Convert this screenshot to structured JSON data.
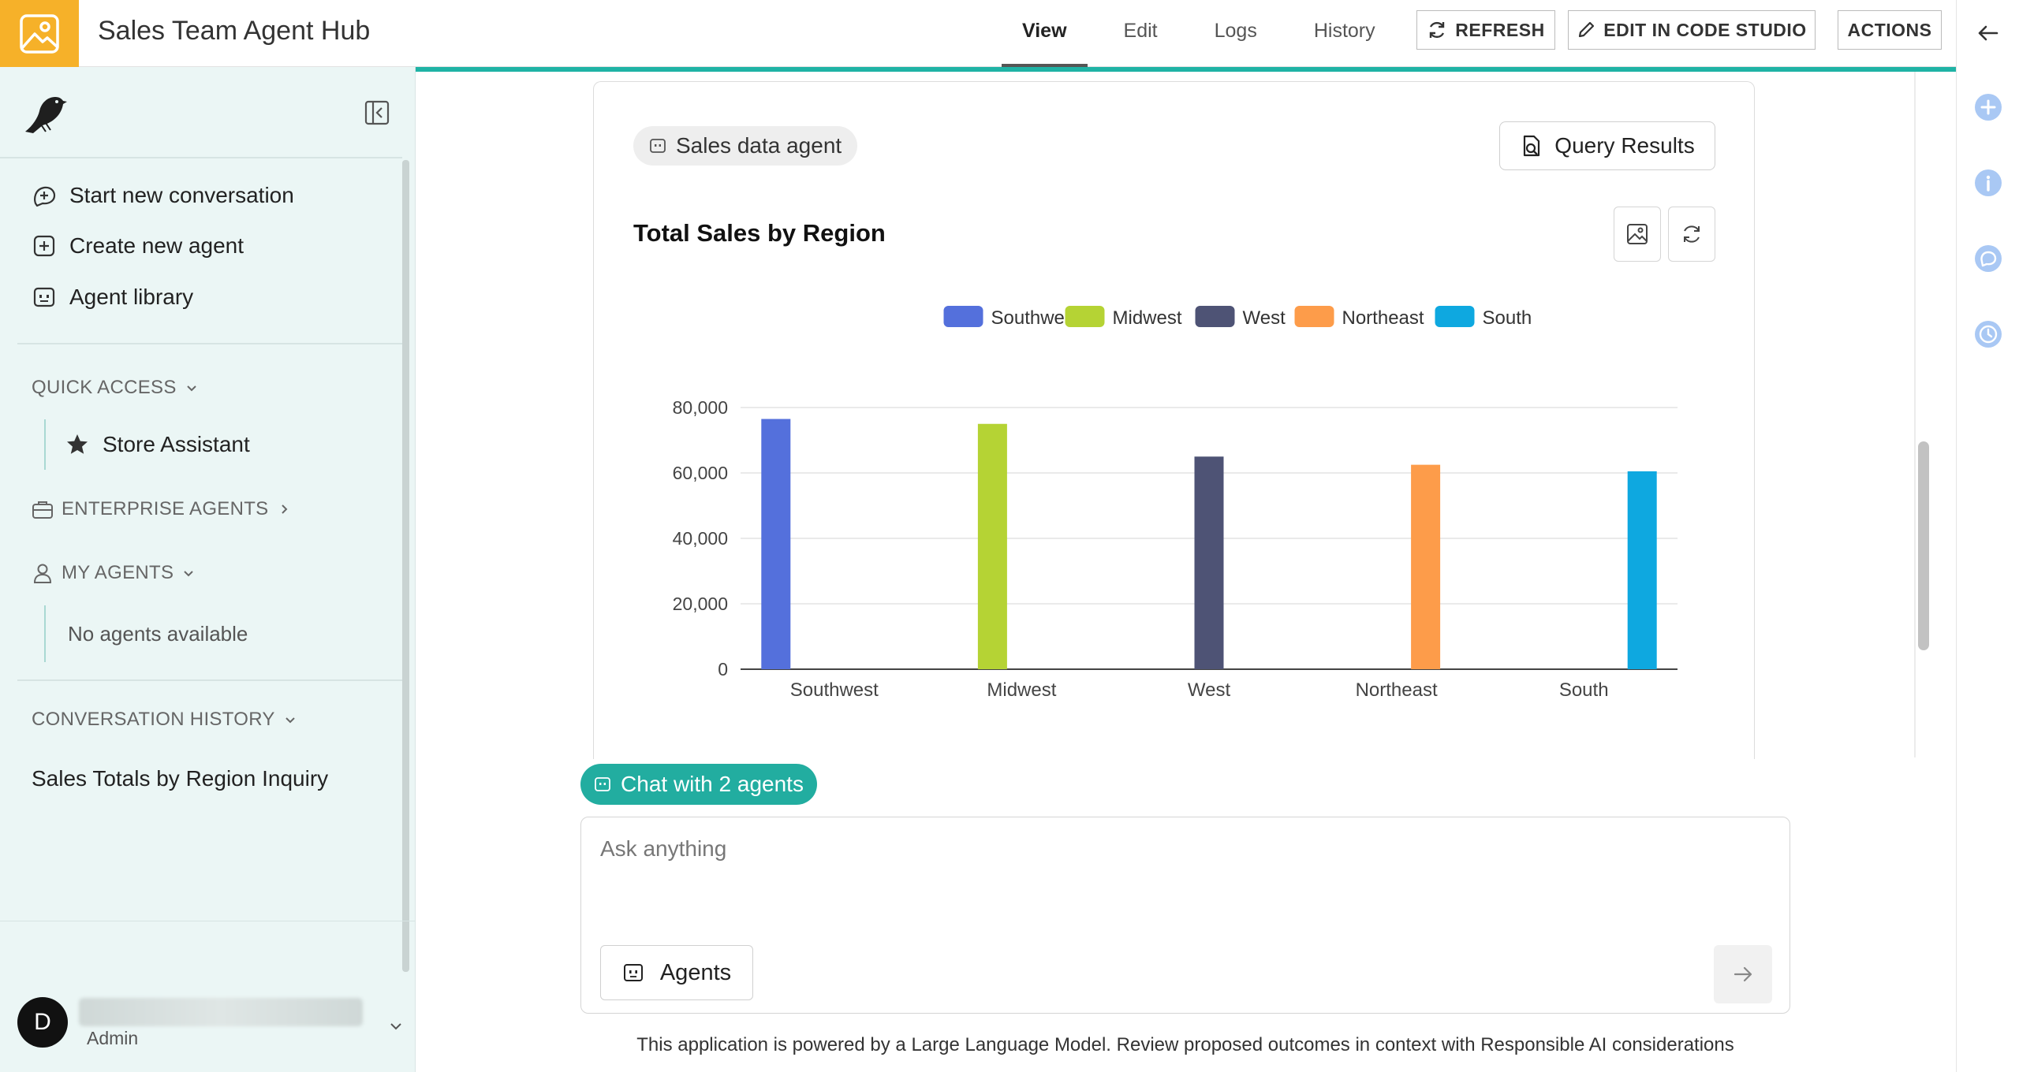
{
  "app": {
    "title": "Sales Team Agent Hub",
    "logo_icon": "image-portrait-icon"
  },
  "tabs": [
    {
      "label": "View",
      "active": true
    },
    {
      "label": "Edit",
      "active": false
    },
    {
      "label": "Logs",
      "active": false
    },
    {
      "label": "History",
      "active": false
    }
  ],
  "toolbar": {
    "refresh": "REFRESH",
    "edit_code_studio": "EDIT IN CODE STUDIO",
    "actions": "ACTIONS"
  },
  "sidebar": {
    "nav": [
      {
        "label": "Start new conversation",
        "icon": "new-chat-icon"
      },
      {
        "label": "Create new agent",
        "icon": "plus-square-icon"
      },
      {
        "label": "Agent library",
        "icon": "agent-icon"
      }
    ],
    "quick_access": {
      "title": "QUICK ACCESS",
      "items": [
        {
          "label": "Store Assistant",
          "icon": "star-icon"
        }
      ]
    },
    "enterprise_agents": {
      "title": "ENTERPRISE AGENTS"
    },
    "my_agents": {
      "title": "MY AGENTS",
      "empty": "No agents available"
    },
    "conversation_history": {
      "title": "CONVERSATION HISTORY",
      "items": [
        "Sales Totals by Region Inquiry"
      ]
    },
    "user": {
      "initial": "D",
      "role": "Admin"
    }
  },
  "message": {
    "agent_label": "Sales data agent",
    "query_results_label": "Query Results"
  },
  "chart_data": {
    "type": "bar",
    "title": "Total Sales by Region",
    "categories": [
      "Southwest",
      "Midwest",
      "West",
      "Northeast",
      "South"
    ],
    "series": [
      {
        "name": "Southwest",
        "color": "#5470dc",
        "values": [
          76500,
          0,
          0,
          0,
          0
        ]
      },
      {
        "name": "Midwest",
        "color": "#b5d334",
        "values": [
          0,
          75000,
          0,
          0,
          0
        ]
      },
      {
        "name": "West",
        "color": "#4e5375",
        "values": [
          0,
          0,
          65000,
          0,
          0
        ]
      },
      {
        "name": "Northeast",
        "color": "#fd9c4a",
        "values": [
          0,
          0,
          0,
          62500,
          0
        ]
      },
      {
        "name": "South",
        "color": "#0ea8e0",
        "values": [
          0,
          0,
          0,
          0,
          60500
        ]
      }
    ],
    "yticks": [
      0,
      20000,
      40000,
      60000,
      80000
    ],
    "ytick_labels": [
      "0",
      "20,000",
      "40,000",
      "60,000",
      "80,000"
    ],
    "ylim": [
      0,
      80000
    ],
    "grid": true,
    "legend_position": "top-center"
  },
  "composer": {
    "chat_label": "Chat with 2 agents",
    "placeholder": "Ask anything",
    "agents_button": "Agents"
  },
  "disclaimer": "This application is powered by a Large Language Model. Review proposed outcomes in context with Responsible AI considerations"
}
